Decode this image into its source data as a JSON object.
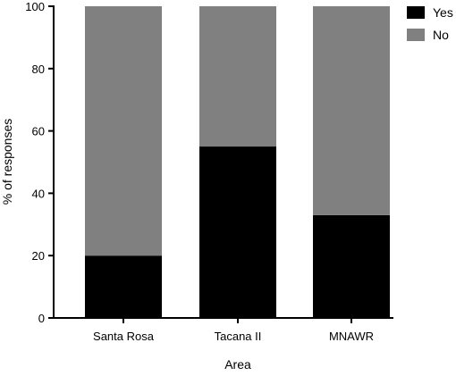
{
  "chart_data": {
    "type": "bar",
    "stacked": true,
    "categories": [
      "Santa Rosa",
      "Tacana II",
      "MNAWR"
    ],
    "series": [
      {
        "name": "Yes",
        "values": [
          20,
          55,
          33
        ],
        "color": "#000000"
      },
      {
        "name": "No",
        "values": [
          80,
          45,
          67
        ],
        "color": "#808080"
      }
    ],
    "xlabel": "Area",
    "ylabel": "% of responses",
    "ylim": [
      0,
      100
    ],
    "yticks": [
      0,
      20,
      40,
      60,
      80,
      100
    ],
    "grid": false,
    "legend_position": "top-right"
  }
}
